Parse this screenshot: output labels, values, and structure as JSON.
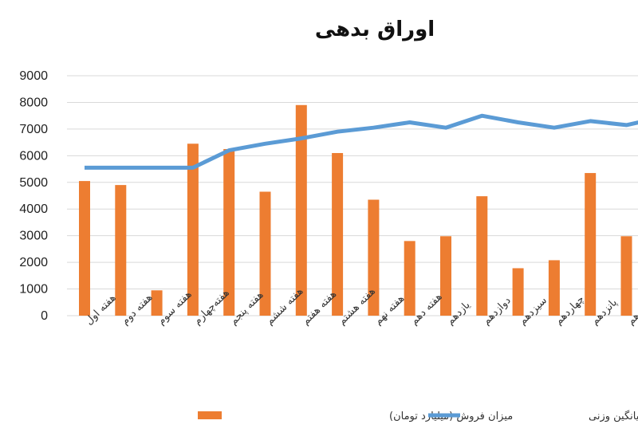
{
  "chart_data": {
    "type": "bar+line",
    "title": "اوراق بدهی",
    "categories": [
      "هفته اول",
      "هفته دوم",
      "هفته سوم",
      "هفته‌چهارم",
      "هفته پنجم",
      "هفته ششم",
      "هفته هفتم",
      "هفته هشتم",
      "هفته نهم",
      "هفته دهم",
      "یازدهم",
      "دوازدهم",
      "سیزدهم",
      "چهاردهم",
      "پانزدهم",
      "شانزدهم",
      "هم"
    ],
    "ylim": [
      0,
      9000
    ],
    "yticks": [
      0,
      1000,
      2000,
      3000,
      4000,
      5000,
      6000,
      7000,
      8000,
      9000
    ],
    "grid": true,
    "legend_position": "bottom",
    "series": [
      {
        "name": "میزان فروش (میلیارد تومان)",
        "kind": "bar",
        "color": "#ed7d31",
        "values": [
          5050,
          4900,
          950,
          6450,
          6250,
          4650,
          7900,
          6100,
          4350,
          2800,
          2980,
          4480,
          1780,
          2080,
          5350,
          2980,
          null
        ]
      },
      {
        "name": "نرخ میانگین وزنی",
        "kind": "line",
        "color": "#5b9bd5",
        "values": [
          5550,
          5550,
          5550,
          5550,
          6200,
          6450,
          6650,
          6900,
          7050,
          7250,
          7050,
          7500,
          7250,
          7050,
          7300,
          7150,
          7450
        ]
      }
    ]
  }
}
